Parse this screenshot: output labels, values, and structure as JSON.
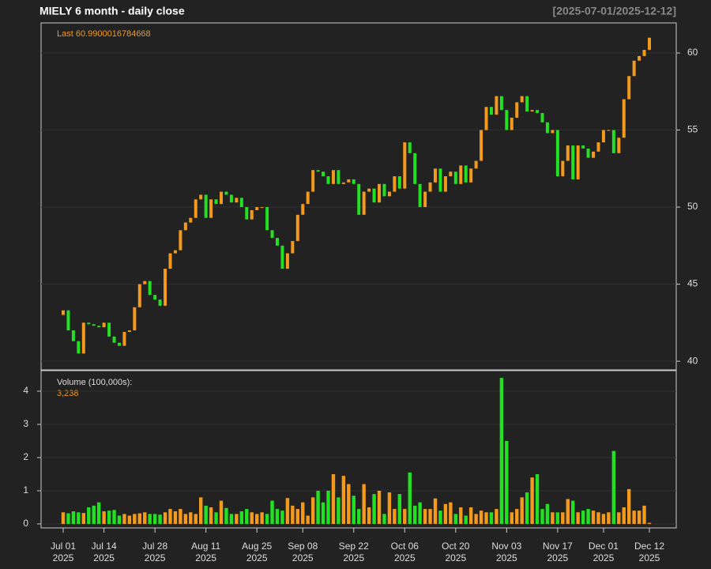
{
  "chart_data": [
    {
      "type": "candlestick",
      "title": "MIELY  6 month - daily close",
      "date_range": "[2025-07-01/2025-12-12]",
      "annotation": "Last 60.9900016784668",
      "up_color": "#f39a1e",
      "down_color": "#22e022",
      "xlim": [
        -4.34,
        120.27
      ],
      "xticks": [
        {
          "value": 0,
          "label": "Jul 01",
          "year": "2025"
        },
        {
          "value": 8,
          "label": "Jul 14",
          "year": "2025"
        },
        {
          "value": 18,
          "label": "Jul 28",
          "year": "2025"
        },
        {
          "value": 28,
          "label": "Aug 11",
          "year": "2025"
        },
        {
          "value": 38,
          "label": "Aug 25",
          "year": "2025"
        },
        {
          "value": 47,
          "label": "Sep 08",
          "year": "2025"
        },
        {
          "value": 57,
          "label": "Sep 22",
          "year": "2025"
        },
        {
          "value": 67,
          "label": "Oct 06",
          "year": "2025"
        },
        {
          "value": 77,
          "label": "Oct 20",
          "year": "2025"
        },
        {
          "value": 87,
          "label": "Nov 03",
          "year": "2025"
        },
        {
          "value": 97,
          "label": "Nov 17",
          "year": "2025"
        },
        {
          "value": 106,
          "label": "Dec 01",
          "year": "2025"
        },
        {
          "value": 115,
          "label": "Dec 12",
          "year": "2025"
        }
      ],
      "ylim": [
        39.44,
        61.95
      ],
      "yticks": [
        40,
        45,
        50,
        55,
        60
      ],
      "opens": [
        43.0,
        43.3,
        42.0,
        41.3,
        40.5,
        42.5,
        42.4,
        42.3,
        42.2,
        42.5,
        41.6,
        41.2,
        41.0,
        41.9,
        42.0,
        43.5,
        45.0,
        45.2,
        44.3,
        44.0,
        43.6,
        46.0,
        47.0,
        47.2,
        48.5,
        49.0,
        49.3,
        50.5,
        50.8,
        49.3,
        50.5,
        50.2,
        51.0,
        50.8,
        50.3,
        50.6,
        50.0,
        49.2,
        49.8,
        50.0,
        50.0,
        48.5,
        48.0,
        47.5,
        46.0,
        47.0,
        47.8,
        49.5,
        50.2,
        51.0,
        52.4,
        52.3,
        52.0,
        51.5,
        52.4,
        51.5,
        51.6,
        51.8,
        51.5,
        49.5,
        51.0,
        51.2,
        50.3,
        51.5,
        50.7,
        51.0,
        52.0,
        51.2,
        54.2,
        53.5,
        51.5,
        50.0,
        51.0,
        51.6,
        52.5,
        51.0,
        52.0,
        52.3,
        51.5,
        52.7,
        51.6,
        52.5,
        53.0,
        55.0,
        56.5,
        56.0,
        57.2,
        56.3,
        55.0,
        55.8,
        56.8,
        57.2,
        56.2,
        56.3,
        56.1,
        55.5,
        54.8,
        55.0,
        52.0,
        53.0,
        54.0,
        51.8,
        54.0,
        53.8,
        53.2,
        53.6,
        54.2,
        55.0,
        55.0,
        53.5,
        54.5,
        57.0,
        58.5,
        59.5,
        59.8,
        60.2
      ],
      "closes": [
        43.3,
        42.0,
        41.3,
        40.5,
        42.5,
        42.4,
        42.3,
        42.2,
        42.5,
        41.6,
        41.2,
        41.0,
        41.9,
        42.0,
        43.5,
        45.0,
        45.2,
        44.3,
        44.0,
        43.6,
        46.0,
        47.0,
        47.2,
        48.5,
        49.0,
        49.3,
        50.5,
        50.8,
        49.3,
        50.5,
        50.2,
        51.0,
        50.8,
        50.3,
        50.6,
        50.0,
        49.2,
        49.8,
        50.0,
        50.0,
        48.5,
        48.0,
        47.5,
        46.0,
        47.0,
        47.8,
        49.5,
        50.2,
        51.0,
        52.4,
        52.3,
        52.0,
        51.5,
        52.4,
        51.5,
        51.6,
        51.8,
        51.5,
        49.5,
        51.0,
        51.2,
        50.3,
        51.5,
        50.7,
        51.0,
        52.0,
        51.2,
        54.2,
        53.5,
        51.5,
        50.0,
        51.0,
        51.6,
        52.5,
        51.0,
        52.0,
        52.3,
        51.5,
        52.7,
        51.6,
        52.5,
        53.0,
        55.0,
        56.5,
        56.0,
        57.2,
        56.3,
        55.0,
        55.8,
        56.8,
        57.2,
        56.2,
        56.3,
        56.1,
        55.5,
        54.8,
        55.0,
        52.0,
        53.0,
        54.0,
        51.8,
        54.0,
        53.8,
        53.2,
        53.6,
        54.2,
        55.0,
        55.0,
        53.5,
        54.5,
        57.0,
        58.5,
        59.5,
        59.8,
        60.2,
        60.99
      ]
    },
    {
      "type": "bar",
      "label": "Volume (100,000s):",
      "last_label": "3,238",
      "ylim": [
        -0.12,
        4.62
      ],
      "yticks": [
        0,
        1,
        2,
        3,
        4
      ],
      "values": [
        0.35,
        0.32,
        0.38,
        0.35,
        0.33,
        0.5,
        0.55,
        0.65,
        0.38,
        0.4,
        0.42,
        0.25,
        0.3,
        0.25,
        0.3,
        0.32,
        0.35,
        0.3,
        0.3,
        0.28,
        0.35,
        0.45,
        0.38,
        0.45,
        0.3,
        0.35,
        0.3,
        0.8,
        0.55,
        0.5,
        0.35,
        0.7,
        0.48,
        0.3,
        0.3,
        0.38,
        0.45,
        0.35,
        0.3,
        0.35,
        0.3,
        0.7,
        0.45,
        0.4,
        0.78,
        0.55,
        0.45,
        0.65,
        0.25,
        0.8,
        1.0,
        0.65,
        1.0,
        1.5,
        0.8,
        1.45,
        1.2,
        0.85,
        0.45,
        1.2,
        0.5,
        0.9,
        1.0,
        0.3,
        0.95,
        0.45,
        0.9,
        0.45,
        1.55,
        0.55,
        0.65,
        0.45,
        0.45,
        0.77,
        0.4,
        0.6,
        0.65,
        0.3,
        0.5,
        0.25,
        0.5,
        0.3,
        0.4,
        0.35,
        0.35,
        0.45,
        4.4,
        2.5,
        0.35,
        0.45,
        0.8,
        0.95,
        1.4,
        1.5,
        0.45,
        0.6,
        0.35,
        0.35,
        0.35,
        0.75,
        0.7,
        0.35,
        0.4,
        0.45,
        0.4,
        0.35,
        0.3,
        0.35,
        2.2,
        0.35,
        0.5,
        1.05,
        0.4,
        0.4,
        0.55,
        0.03238
      ]
    }
  ]
}
